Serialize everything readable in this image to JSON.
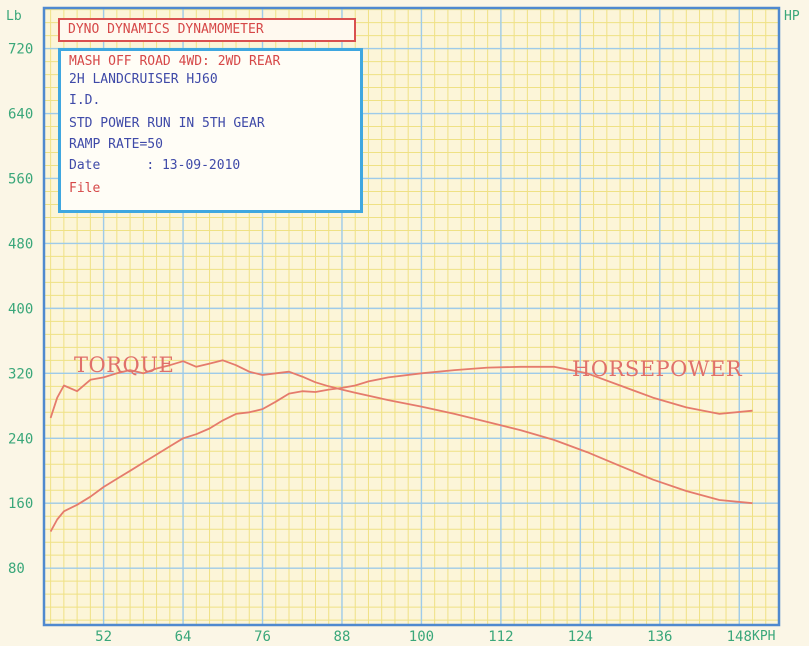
{
  "header": {
    "title": "DYNO DYNAMICS DYNAMOMETER"
  },
  "info": {
    "lines": [
      "MASH OFF ROAD 4WD: 2WD REAR",
      "2H LANDCRUISER HJ60",
      "I.D.",
      "STD POWER RUN IN 5TH GEAR",
      "RAMP RATE=50"
    ],
    "date_label": "Date",
    "date_value": ": 13-09-2010",
    "file_label": "File"
  },
  "colors": {
    "curve": "#e57b6c",
    "grid_major": "#9ecbea",
    "grid_minor": "#efe184",
    "axis_frame": "#4f89cf",
    "tick_text": "#3aa77a",
    "label_red": "#d64848"
  },
  "chart_data": {
    "type": "line",
    "xlabel": "KPH",
    "ylabel": "Lb",
    "y2label": "HP",
    "xlim": [
      43,
      154
    ],
    "ylim": [
      10,
      770
    ],
    "x_ticks": [
      52,
      64,
      76,
      88,
      100,
      112,
      124,
      136,
      148
    ],
    "y_ticks": [
      80,
      160,
      240,
      320,
      400,
      480,
      560,
      640,
      720
    ],
    "grid": true,
    "series": [
      {
        "name": "TORQUE",
        "x": [
          44,
          45,
          46,
          48,
          50,
          52,
          54,
          56,
          58,
          60,
          62,
          64,
          66,
          68,
          70,
          72,
          74,
          76,
          78,
          80,
          82,
          84,
          86,
          88,
          90,
          95,
          100,
          105,
          110,
          115,
          120,
          125,
          130,
          135,
          140,
          145,
          150
        ],
        "y": [
          265,
          290,
          305,
          298,
          312,
          315,
          320,
          324,
          320,
          326,
          330,
          335,
          328,
          332,
          336,
          330,
          322,
          318,
          320,
          322,
          316,
          309,
          304,
          300,
          296,
          287,
          279,
          270,
          260,
          250,
          238,
          223,
          206,
          189,
          175,
          164,
          160
        ]
      },
      {
        "name": "HORSEPOWER",
        "x": [
          44,
          45,
          46,
          48,
          50,
          52,
          54,
          56,
          58,
          60,
          62,
          64,
          66,
          68,
          70,
          72,
          74,
          76,
          78,
          80,
          82,
          84,
          86,
          88,
          90,
          92,
          95,
          100,
          105,
          110,
          115,
          120,
          125,
          130,
          135,
          140,
          145,
          150
        ],
        "y": [
          125,
          140,
          150,
          158,
          168,
          180,
          190,
          200,
          210,
          220,
          230,
          240,
          245,
          252,
          262,
          270,
          272,
          276,
          285,
          295,
          298,
          297,
          300,
          302,
          305,
          310,
          315,
          320,
          324,
          327,
          328,
          328,
          320,
          305,
          290,
          278,
          270,
          274
        ]
      }
    ]
  }
}
